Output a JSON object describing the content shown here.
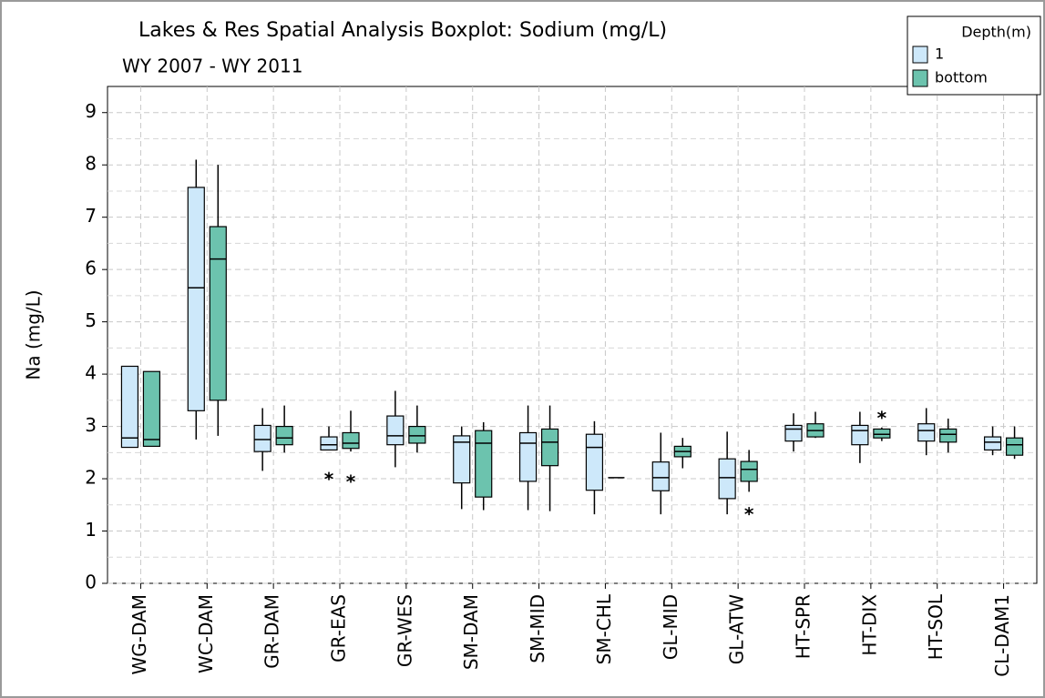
{
  "chart_data": {
    "type": "boxplot",
    "title": "Lakes & Res Spatial Analysis Boxplot: Sodium (mg/L)",
    "subtitle": "WY 2007 - WY 2011",
    "y_label": "Na (mg/L)",
    "legend_title": "Depth(m)",
    "legend_position": "top-right",
    "grid": true,
    "categories": [
      "WG-DAM",
      "WC-DAM",
      "GR-DAM",
      "GR-EAS",
      "GR-WES",
      "SM-DAM",
      "SM-MID",
      "SM-CHL",
      "GL-MID",
      "GL-ATW",
      "HT-SPR",
      "HT-DIX",
      "HT-SOL",
      "CL-DAM1"
    ],
    "ylim": [
      0,
      9.5
    ],
    "yticks": [
      0,
      1,
      2,
      3,
      4,
      5,
      6,
      7,
      8,
      9
    ],
    "series": [
      {
        "name": "1",
        "color": "#cde8fa",
        "min": [
          2.6,
          2.75,
          2.15,
          2.55,
          2.22,
          1.42,
          1.4,
          1.32,
          1.32,
          1.32,
          2.52,
          2.3,
          2.45,
          2.45
        ],
        "q1": [
          2.6,
          3.3,
          2.52,
          2.55,
          2.65,
          1.92,
          1.95,
          1.78,
          1.77,
          1.62,
          2.72,
          2.65,
          2.72,
          2.55
        ],
        "median": [
          2.78,
          5.65,
          2.75,
          2.65,
          2.82,
          2.7,
          2.68,
          2.6,
          2.02,
          2.02,
          2.95,
          2.92,
          2.92,
          2.7
        ],
        "q3": [
          4.15,
          7.57,
          3.02,
          2.8,
          3.2,
          2.82,
          2.88,
          2.85,
          2.32,
          2.38,
          3.02,
          3.02,
          3.05,
          2.8
        ],
        "max": [
          4.15,
          8.1,
          3.35,
          3.0,
          3.68,
          3.0,
          3.4,
          3.1,
          2.88,
          2.9,
          3.25,
          3.28,
          3.35,
          3.0
        ],
        "outliers": [
          [],
          [],
          [],
          [
            2.05
          ],
          [],
          [],
          [],
          [],
          [],
          [],
          [],
          [],
          [],
          []
        ]
      },
      {
        "name": "bottom",
        "color": "#6cc3ae",
        "min": [
          2.62,
          2.82,
          2.5,
          2.52,
          2.5,
          1.4,
          1.38,
          2.02,
          2.2,
          1.75,
          2.78,
          2.72,
          2.5,
          2.38
        ],
        "q1": [
          2.62,
          3.5,
          2.65,
          2.58,
          2.68,
          1.65,
          2.25,
          2.02,
          2.42,
          1.95,
          2.8,
          2.78,
          2.7,
          2.45
        ],
        "median": [
          2.75,
          6.2,
          2.78,
          2.68,
          2.82,
          2.68,
          2.7,
          2.02,
          2.52,
          2.18,
          2.92,
          2.85,
          2.85,
          2.65
        ],
        "q3": [
          4.05,
          6.82,
          3.0,
          2.88,
          3.0,
          2.92,
          2.95,
          2.02,
          2.62,
          2.33,
          3.05,
          2.95,
          2.95,
          2.78
        ],
        "max": [
          4.05,
          8.0,
          3.4,
          3.3,
          3.4,
          3.08,
          3.4,
          2.02,
          2.78,
          2.55,
          3.28,
          2.98,
          3.15,
          3.0
        ],
        "outliers": [
          [],
          [],
          [],
          [
            2.0
          ],
          [],
          [],
          [],
          [],
          [],
          [
            1.38
          ],
          [],
          [
            3.22
          ],
          [],
          []
        ]
      }
    ]
  }
}
